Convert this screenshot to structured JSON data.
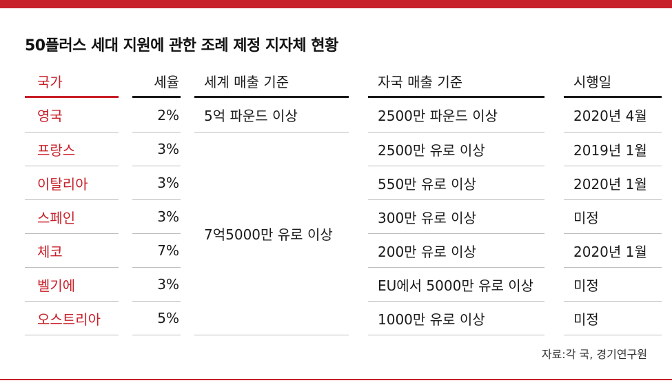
{
  "title": "50플러스 세대 지원에 관한 조례 제정 지자체 현황",
  "headers": {
    "country": "국가",
    "rate": "세율",
    "global_sales": "세계 매출 기준",
    "domestic_sales": "자국 매출 기준",
    "effective_date": "시행일"
  },
  "rows": [
    {
      "country": "영국",
      "rate": "2%",
      "global_sales": "5억 파운드 이상",
      "domestic_sales": "2500만 파운드 이상",
      "effective_date": "2020년 4월"
    },
    {
      "country": "프랑스",
      "rate": "3%",
      "domestic_sales": "2500만 유로 이상",
      "effective_date": "2019년 1월"
    },
    {
      "country": "이탈리아",
      "rate": "3%",
      "domestic_sales": "550만 유로 이상",
      "effective_date": "2020년 1월"
    },
    {
      "country": "스페인",
      "rate": "3%",
      "domestic_sales": "300만 유로 이상",
      "effective_date": "미정"
    },
    {
      "country": "체코",
      "rate": "7%",
      "domestic_sales": "200만 유로 이상",
      "effective_date": "2020년 1월"
    },
    {
      "country": "벨기에",
      "rate": "3%",
      "domestic_sales": "EU에서 5000만 유로 이상",
      "effective_date": "미정"
    },
    {
      "country": "오스트리아",
      "rate": "5%",
      "domestic_sales": "1000만 유로 이상",
      "effective_date": "미정"
    }
  ],
  "merged_global_sales": "7억5000만 유로 이상",
  "source": "자료:각 국, 경기연구원",
  "colors": {
    "accent": "#c8202a",
    "rule": "#1a1a1a",
    "row_line": "#bdbdbd"
  }
}
